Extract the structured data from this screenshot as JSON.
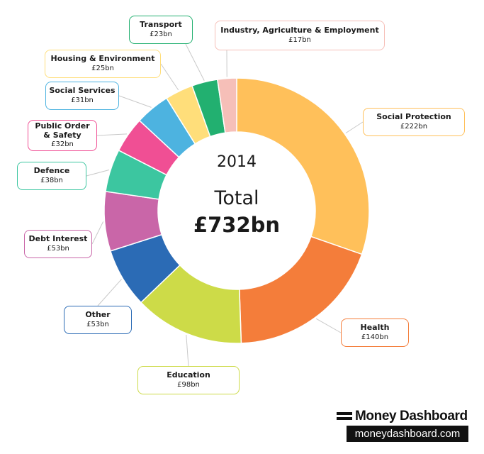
{
  "chart_data": {
    "type": "pie",
    "style": "donut",
    "title": "",
    "year_label": "2014",
    "total_label": "Total",
    "total_value": "£732bn",
    "segments": [
      {
        "name": "Social Protection",
        "value_label": "£222bn",
        "value": 222,
        "color": "#FFC05A"
      },
      {
        "name": "Health",
        "value_label": "£140bn",
        "value": 140,
        "color": "#F47D3A"
      },
      {
        "name": "Education",
        "value_label": "£98bn",
        "value": 98,
        "color": "#CDDB48"
      },
      {
        "name": "Other",
        "value_label": "£53bn",
        "value": 53,
        "color": "#2B6BB5"
      },
      {
        "name": "Debt Interest",
        "value_label": "£53bn",
        "value": 53,
        "color": "#C966A8"
      },
      {
        "name": "Defence",
        "value_label": "£38bn",
        "value": 38,
        "color": "#3CC6A0"
      },
      {
        "name": "Public Order\n& Safety",
        "value_label": "£32bn",
        "value": 32,
        "color": "#F04F94"
      },
      {
        "name": "Social Services",
        "value_label": "£31bn",
        "value": 31,
        "color": "#4DB3E0"
      },
      {
        "name": "Housing & Environment",
        "value_label": "£25bn",
        "value": 25,
        "color": "#FFDE7A"
      },
      {
        "name": "Transport",
        "value_label": "£23bn",
        "value": 23,
        "color": "#22B070"
      },
      {
        "name": "Industry, Agriculture & Employment",
        "value_label": "£17bn",
        "value": 17,
        "color": "#F6BFB8"
      }
    ]
  },
  "branding": {
    "name": "Money Dashboard",
    "url": "moneydashboard.com",
    "logo_icon": "two-bar-icon"
  }
}
